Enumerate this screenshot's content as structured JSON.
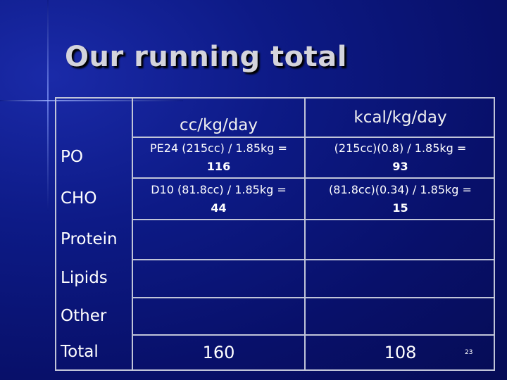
{
  "title": "Our running total",
  "table": {
    "columns": [
      "cc/kg/day",
      "kcal/kg/day"
    ],
    "rows": [
      {
        "label": "PO",
        "cc": {
          "formula": "PE24 (215cc) / 1.85kg =",
          "result": 116
        },
        "kcal": {
          "formula": "(215cc)(0.8) / 1.85kg =",
          "result": 93
        }
      },
      {
        "label": "CHO",
        "cc": {
          "formula": "D10 (81.8cc) / 1.85kg =",
          "result": 44
        },
        "kcal": {
          "formula": "(81.8cc)(0.34) / 1.85kg =",
          "result": 15
        }
      },
      {
        "label": "Protein"
      },
      {
        "label": "Lipids"
      },
      {
        "label": "Other"
      },
      {
        "label": "Total",
        "cc": {
          "result": 160
        },
        "kcal": {
          "result": 108
        }
      }
    ]
  },
  "page_number": 23
}
